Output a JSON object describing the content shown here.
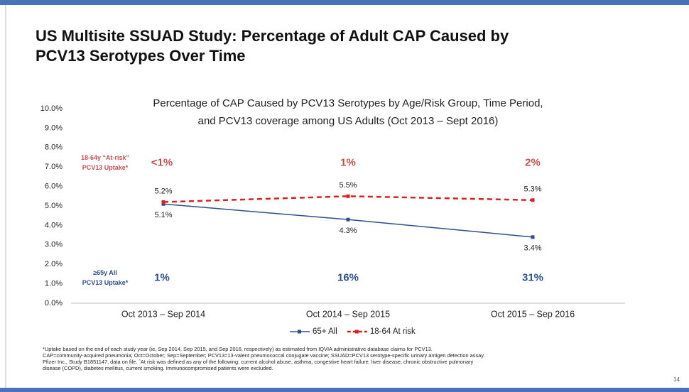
{
  "slide_title": [
    "US Multisite SSUAD Study:  Percentage of Adult CAP Caused by",
    "PCV13 Serotypes Over Time"
  ],
  "chart_data": {
    "type": "line",
    "title": [
      "Percentage of CAP Caused by PCV13 Serotypes by Age/Risk Group, Time Period,",
      "and PCV13 coverage among US Adults (Oct 2013 – Sept 2016)"
    ],
    "categories": [
      "Oct 2013 – Sep 2014",
      "Oct 2014 – Sep 2015",
      "Oct 2015 – Sep 2016"
    ],
    "series": [
      {
        "name": "65+ All",
        "color": "#2e4e8c",
        "dashed": false,
        "values": [
          5.1,
          4.3,
          3.4
        ],
        "value_labels": [
          "5.1%",
          "4.3%",
          "3.4%"
        ]
      },
      {
        "name": "18-64 At risk",
        "color": "#d62222",
        "dashed": true,
        "values": [
          5.2,
          5.5,
          5.3
        ],
        "value_labels": [
          "5.2%",
          "5.5%",
          "5.3%"
        ]
      }
    ],
    "ylim": [
      0,
      10
    ],
    "yticks": [
      {
        "value": 0,
        "label": "0.0%"
      },
      {
        "value": 1,
        "label": "1.0%"
      },
      {
        "value": 2,
        "label": "2.0%"
      },
      {
        "value": 3,
        "label": "3.0%"
      },
      {
        "value": 4,
        "label": "4.0%"
      },
      {
        "value": 5,
        "label": "5.0%"
      },
      {
        "value": 6,
        "label": "6.0%"
      },
      {
        "value": 7,
        "label": "7.0%"
      },
      {
        "value": 8,
        "label": "8.0%"
      },
      {
        "value": 9,
        "label": "9.0%"
      },
      {
        "value": 10,
        "label": "10.0%"
      }
    ],
    "legend": "bottom",
    "annotations": [
      {
        "label": [
          "18-64y “At-risk”",
          "PCV13 Uptake*"
        ],
        "color": "#c0504d",
        "values": [
          "<1%",
          "1%",
          "2%"
        ]
      },
      {
        "label": [
          "≥65y All",
          "PCV13 Uptake*"
        ],
        "color": "#2e4e8c",
        "values": [
          "1%",
          "16%",
          "31%"
        ]
      }
    ]
  },
  "footnote": [
    "*Uptake based on the end of each study year (ie, Sep 2014, Sep 2015, and Sep 2016, respectively) as estimated from IQVIA administrative database claims for PCV13.",
    "CAP=community-acquired pneumonia; Oct=October; Sep=September; PCV13=13-valent pneumococcal conjugate vaccine; SSUAD=PCV13 serotype-specific urinary antigen detection assay.",
    "Pfizer Inc., Study B1851147, data on file.  ˆAt risk was defined as any of the following:  current alcohol abuse, asthma, congestive heart failure, liver disease, chronic obstructive pulmonary",
    "disease (COPD), diabetes mellitus, current smoking.  Immunocompromised patients were excluded."
  ],
  "page_number": "14"
}
